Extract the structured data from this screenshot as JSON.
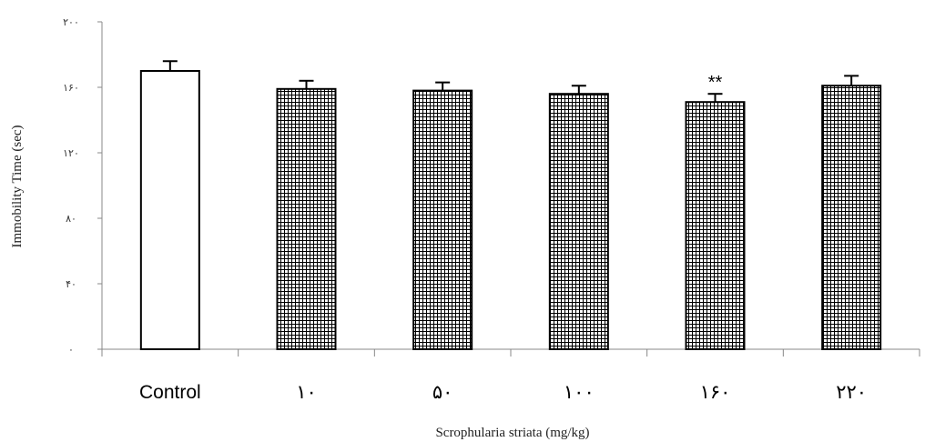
{
  "chart_data": {
    "type": "bar",
    "categories": [
      "Control",
      "۱۰",
      "۵۰",
      "۱۰۰",
      "۱۶۰",
      "۲۲۰"
    ],
    "values": [
      170,
      159,
      158,
      156,
      151,
      161
    ],
    "errors": [
      6,
      5,
      5,
      5,
      5,
      6
    ],
    "fill_patterns": [
      "solid",
      "grid",
      "grid",
      "grid",
      "grid",
      "grid"
    ],
    "annotations": [
      "",
      "",
      "",
      "",
      "**",
      ""
    ],
    "xlabel": "Scrophularia striata (mg/kg)",
    "ylabel": "Immobility Time (sec)",
    "ylim": [
      0,
      200
    ],
    "yticks": [
      0,
      40,
      80,
      120,
      160,
      200
    ],
    "ytick_labels": [
      "۰",
      "۴۰",
      "۸۰",
      "۱۲۰",
      "۱۶۰",
      "۲۰۰"
    ],
    "grid": false,
    "colors": {
      "bar_fill": "#ffffff",
      "bar_stroke": "#000000",
      "pattern": "#000000"
    }
  }
}
